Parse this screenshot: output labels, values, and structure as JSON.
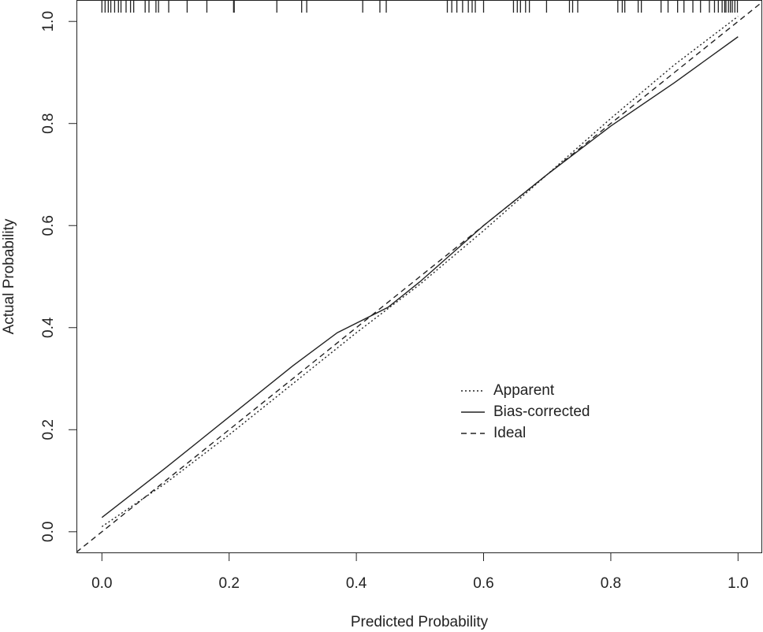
{
  "chart_data": {
    "type": "line",
    "xlabel": "Predicted Probability",
    "ylabel": "Actual Probability",
    "xlim": [
      -0.04,
      1.038
    ],
    "ylim": [
      -0.042,
      1.042
    ],
    "xticks": [
      {
        "value": 0,
        "label": "0.0"
      },
      0.2,
      0.4,
      0.6,
      0.8,
      {
        "value": 1,
        "label": "1.0"
      }
    ],
    "yticks": [
      {
        "value": 0,
        "label": "0.0"
      },
      0.2,
      0.4,
      0.6,
      0.8,
      {
        "value": 1,
        "label": "1.0"
      }
    ],
    "legend": "right",
    "series": [
      {
        "name": "Apparent",
        "color": "#222",
        "dash": "dotted",
        "x": [
          0,
          0.1,
          0.2,
          0.3,
          0.4,
          0.5,
          0.6,
          0.7,
          0.8,
          0.9,
          1.0
        ],
        "values": [
          0.01,
          0.095,
          0.19,
          0.29,
          0.39,
          0.485,
          0.59,
          0.7,
          0.81,
          0.915,
          1.01
        ]
      },
      {
        "name": "Bias-corrected",
        "color": "#222",
        "dash": "solid",
        "x": [
          0,
          0.1,
          0.2,
          0.3,
          0.37,
          0.45,
          0.5,
          0.6,
          0.7,
          0.8,
          0.9,
          1.0
        ],
        "values": [
          0.028,
          0.125,
          0.225,
          0.325,
          0.39,
          0.44,
          0.49,
          0.6,
          0.7,
          0.795,
          0.88,
          0.97
        ]
      },
      {
        "name": "Ideal",
        "color": "#222",
        "dash": "dashed",
        "x": [
          -0.04,
          1.04
        ],
        "values": [
          -0.04,
          1.04
        ]
      }
    ],
    "rug": [
      0,
      0.005,
      0.01,
      0.014,
      0.02,
      0.026,
      0.03,
      0.038,
      0.045,
      0.05,
      0.068,
      0.074,
      0.085,
      0.089,
      0.105,
      0.134,
      0.165,
      0.207,
      0.208,
      0.275,
      0.314,
      0.322,
      0.41,
      0.437,
      0.447,
      0.543,
      0.55,
      0.558,
      0.567,
      0.576,
      0.582,
      0.587,
      0.6,
      0.647,
      0.653,
      0.658,
      0.666,
      0.672,
      0.699,
      0.735,
      0.74,
      0.748,
      0.811,
      0.818,
      0.822,
      0.843,
      0.848,
      0.879,
      0.89,
      0.905,
      0.915,
      0.929,
      0.941,
      0.955,
      0.963,
      0.969,
      0.975,
      0.979,
      0.981,
      0.985,
      0.988,
      0.991,
      0.995,
      0.999
    ]
  }
}
